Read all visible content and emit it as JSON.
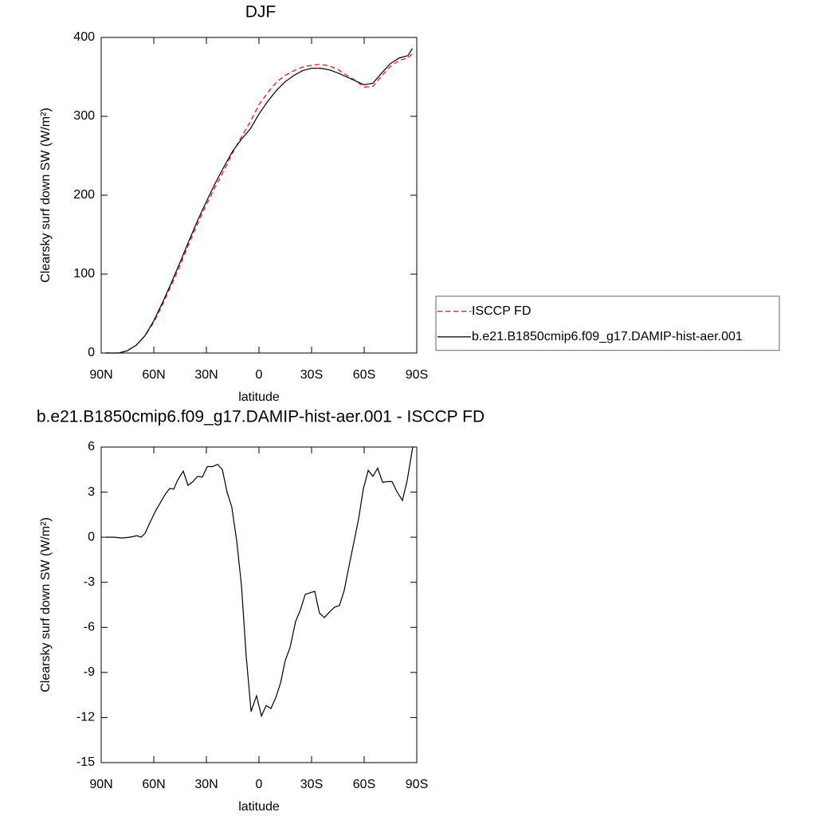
{
  "chart_data": [
    {
      "type": "line",
      "title": "DJF",
      "xlabel": "latitude",
      "ylabel": "Clearsky surf down SW (W/m²)",
      "x": [
        87.5,
        80,
        75,
        70,
        65,
        60,
        55,
        50,
        45,
        40,
        35,
        30,
        25,
        20,
        15,
        10,
        5,
        0,
        -5,
        -10,
        -15,
        -20,
        -25,
        -30,
        -35,
        -40,
        -45,
        -50,
        -55,
        -60,
        -65,
        -70,
        -75,
        -80,
        -85,
        -87.5
      ],
      "series": [
        {
          "name": "ISCCP FD",
          "color": "#ff0000",
          "linestyle": "dashed",
          "values": [
            0,
            0,
            3,
            10,
            22,
            39,
            61.5,
            86,
            111,
            138.5,
            164,
            188,
            210.5,
            231.5,
            254,
            274,
            293,
            315,
            330,
            343.5,
            352,
            358,
            362.5,
            364.7,
            366,
            364,
            359.5,
            352,
            345.5,
            337,
            338,
            351.4,
            363.3,
            371,
            374,
            380
          ]
        },
        {
          "name": "b.e21.B1850cmip6.f09_g17.DAMIP-hist-aer.001",
          "color": "#000000",
          "linestyle": "solid",
          "values": [
            0,
            0,
            3,
            10,
            22,
            41,
            64,
            89,
            115,
            142,
            168,
            192,
            215,
            236,
            256,
            271,
            284,
            303,
            319,
            333,
            344,
            352,
            358,
            361,
            361,
            359,
            355,
            350,
            345,
            340,
            342,
            355,
            367,
            374,
            377,
            386
          ]
        }
      ],
      "xlim": [
        90,
        -90
      ],
      "xticks": [
        {
          "value": 90,
          "label": "90N"
        },
        {
          "value": 60,
          "label": "60N"
        },
        {
          "value": 30,
          "label": "30N"
        },
        0,
        {
          "value": -30,
          "label": "30S"
        },
        {
          "value": -60,
          "label": "60S"
        },
        {
          "value": -90,
          "label": "90S"
        }
      ],
      "ylim": [
        0,
        400
      ],
      "yticks": [
        0,
        100,
        200,
        300,
        400
      ],
      "legend": "right"
    },
    {
      "type": "line",
      "title": "b.e21.B1850cmip6.f09_g17.DAMIP-hist-aer.001 - ISCCP FD",
      "xlabel": "latitude",
      "ylabel": "Clearsky surf down SW (W/m²)",
      "x": [
        87.3,
        82.7,
        78.2,
        73.6,
        69.5,
        67.3,
        65,
        62.7,
        59,
        55.5,
        53.2,
        50.9,
        48.6,
        46.4,
        43.2,
        40.5,
        37.7,
        35,
        32.3,
        29.5,
        26.4,
        23.6,
        20.9,
        18.2,
        15.5,
        12.7,
        10,
        7.3,
        4.5,
        1.4,
        -1.4,
        -4.1,
        -6.8,
        -9.5,
        -12.3,
        -15,
        -17.7,
        -20.9,
        -23.6,
        -26.4,
        -29.1,
        -31.8,
        -34.5,
        -37.3,
        -40,
        -43.2,
        -45.9,
        -48.6,
        -51.4,
        -54.1,
        -56.8,
        -59.5,
        -62.3,
        -65,
        -67.7,
        -70.5,
        -73.2,
        -75.9,
        -78.6,
        -81.8,
        -84.5,
        -87.7
      ],
      "series": [
        {
          "color": "#000000",
          "linestyle": "solid",
          "values": [
            0,
            0,
            -0.05,
            0,
            0.1,
            0,
            0.25,
            0.85,
            1.75,
            2.45,
            2.9,
            3.25,
            3.2,
            3.8,
            4.4,
            3.45,
            3.7,
            4.05,
            4.0,
            4.7,
            4.7,
            4.85,
            4.5,
            3.0,
            2.0,
            -0.25,
            -3.2,
            -7.9,
            -11.6,
            -10.55,
            -11.9,
            -11.2,
            -11.4,
            -10.7,
            -9.7,
            -8.2,
            -7.35,
            -5.6,
            -4.85,
            -3.8,
            -3.7,
            -3.6,
            -5.05,
            -5.35,
            -5.0,
            -4.65,
            -4.55,
            -3.55,
            -1.9,
            -0.35,
            1.2,
            3.2,
            4.45,
            4.05,
            4.6,
            3.65,
            3.7,
            3.7,
            3.05,
            2.45,
            3.75,
            6.0
          ]
        }
      ],
      "xlim": [
        90,
        -90
      ],
      "xticks": [
        {
          "value": 90,
          "label": "90N"
        },
        {
          "value": 60,
          "label": "60N"
        },
        {
          "value": 30,
          "label": "30N"
        },
        0,
        {
          "value": -30,
          "label": "30S"
        },
        {
          "value": -60,
          "label": "60S"
        },
        {
          "value": -90,
          "label": "90S"
        }
      ],
      "ylim": [
        -15,
        6
      ],
      "yticks": [
        -15,
        -12,
        -9,
        -6,
        -3,
        0,
        3,
        6
      ]
    }
  ]
}
